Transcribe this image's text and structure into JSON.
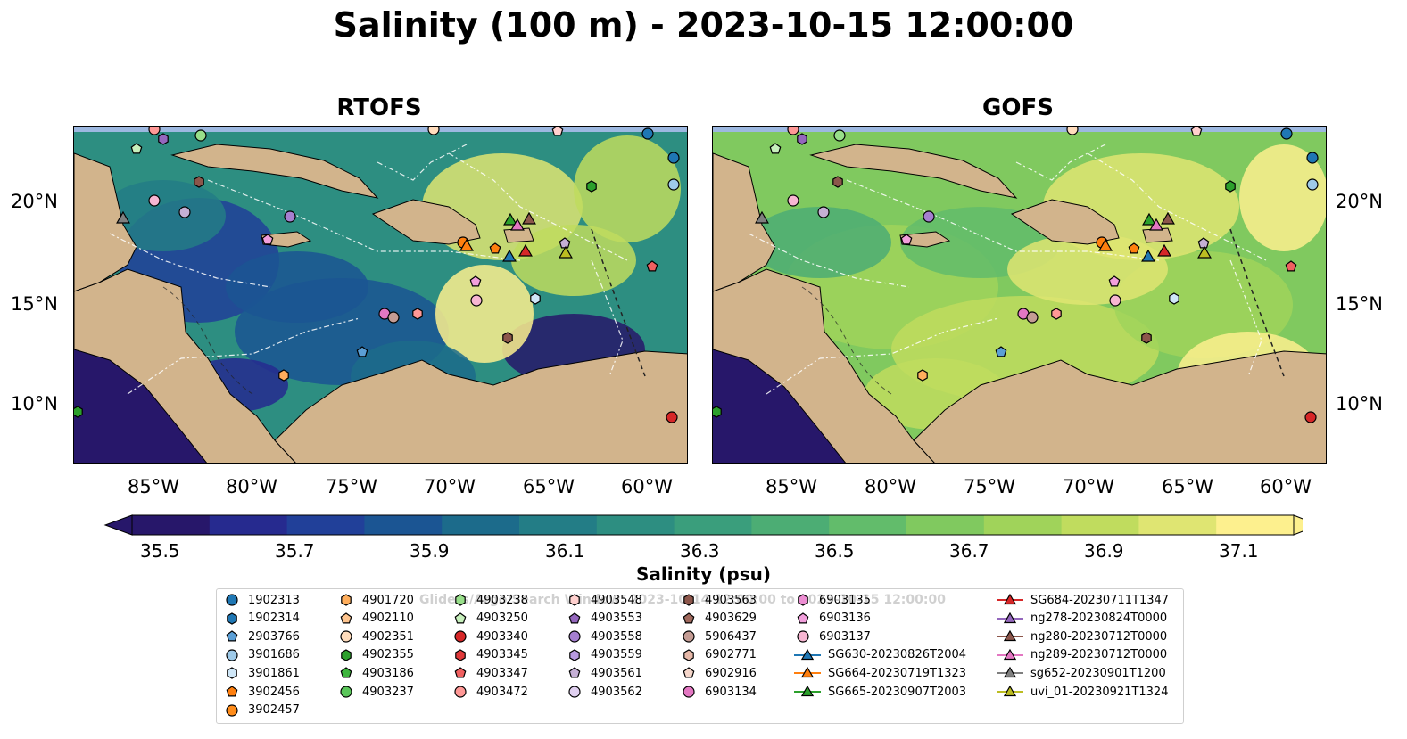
{
  "title": "Salinity (100 m) - 2023-10-15 12:00:00",
  "panels": [
    {
      "title": "RTOFS",
      "theme": "rtofs"
    },
    {
      "title": "GOFS",
      "theme": "gofs"
    }
  ],
  "lat_ticks": [
    "20°N",
    "15°N",
    "10°N"
  ],
  "lon_ticks": [
    "85°W",
    "80°W",
    "75°W",
    "70°W",
    "65°W",
    "60°W"
  ],
  "colorbar": {
    "ticks": [
      "35.5",
      "35.7",
      "35.9",
      "36.1",
      "36.3",
      "36.5",
      "36.7",
      "36.9",
      "37.1"
    ],
    "label": "Salinity (psu)",
    "colors": [
      "#27176a",
      "#262a8f",
      "#214099",
      "#1b5593",
      "#1c6b8b",
      "#237d86",
      "#2d8e81",
      "#3a9e7c",
      "#4cad74",
      "#62bc6b",
      "#80c95f",
      "#a0d35a",
      "#c0dc5e",
      "#dfe572",
      "#fdf08e"
    ]
  },
  "legend_watermark": "Gliders/Argo/Search Window: 2023-10-14 12:00:00 to 2023-10-15 12:00:00",
  "legend": [
    {
      "label": "1902313",
      "marker": "circle",
      "color": "#1f77b4"
    },
    {
      "label": "1902314",
      "marker": "hexagon",
      "color": "#1f77b4"
    },
    {
      "label": "2903766",
      "marker": "pentagon",
      "color": "#5b9fd6"
    },
    {
      "label": "3901686",
      "marker": "circle",
      "color": "#9ecae9"
    },
    {
      "label": "3901861",
      "marker": "hexagon",
      "color": "#cfe7f8"
    },
    {
      "label": "3902456",
      "marker": "pentagon",
      "color": "#ff7f0e"
    },
    {
      "label": "3902457",
      "marker": "circle",
      "color": "#ff8c1a"
    },
    {
      "label": "4901720",
      "marker": "hexagon",
      "color": "#ffae5c"
    },
    {
      "label": "4902110",
      "marker": "pentagon",
      "color": "#ffc58f"
    },
    {
      "label": "4902351",
      "marker": "circle",
      "color": "#ffdcbc"
    },
    {
      "label": "4902355",
      "marker": "hexagon",
      "color": "#2ca02c"
    },
    {
      "label": "4903186",
      "marker": "pentagon",
      "color": "#3cb43c"
    },
    {
      "label": "4903237",
      "marker": "circle",
      "color": "#5ac65a"
    },
    {
      "label": "4903238",
      "marker": "hexagon",
      "color": "#98df8a"
    },
    {
      "label": "4903250",
      "marker": "pentagon",
      "color": "#c7f0bc"
    },
    {
      "label": "4903340",
      "marker": "circle",
      "color": "#d62728"
    },
    {
      "label": "4903345",
      "marker": "hexagon",
      "color": "#e0393a"
    },
    {
      "label": "4903347",
      "marker": "pentagon",
      "color": "#f06060"
    },
    {
      "label": "4903472",
      "marker": "circle",
      "color": "#ff9896"
    },
    {
      "label": "4903548",
      "marker": "hexagon",
      "color": "#ffd0ce"
    },
    {
      "label": "4903553",
      "marker": "pentagon",
      "color": "#9467bd"
    },
    {
      "label": "4903558",
      "marker": "circle",
      "color": "#a57fd0"
    },
    {
      "label": "4903559",
      "marker": "hexagon",
      "color": "#b89ae0"
    },
    {
      "label": "4903561",
      "marker": "pentagon",
      "color": "#c5b0d5"
    },
    {
      "label": "4903562",
      "marker": "circle",
      "color": "#e0d0f0"
    },
    {
      "label": "4903563",
      "marker": "hexagon",
      "color": "#8c564b"
    },
    {
      "label": "4903629",
      "marker": "pentagon",
      "color": "#a0695d"
    },
    {
      "label": "5906437",
      "marker": "circle",
      "color": "#c49c94"
    },
    {
      "label": "6902771",
      "marker": "hexagon",
      "color": "#e6b8a8"
    },
    {
      "label": "6902916",
      "marker": "pentagon",
      "color": "#f5d6ca"
    },
    {
      "label": "6903134",
      "marker": "circle",
      "color": "#e377c2"
    },
    {
      "label": "6903135",
      "marker": "hexagon",
      "color": "#ec8dd2"
    },
    {
      "label": "6903136",
      "marker": "pentagon",
      "color": "#f29fdc"
    },
    {
      "label": "6903137",
      "marker": "circle",
      "color": "#f7b6d2"
    },
    {
      "label": "SG630-20230826T2004",
      "marker": "triangle-line",
      "color": "#1f77b4"
    },
    {
      "label": "SG664-20230719T1323",
      "marker": "triangle-line",
      "color": "#ff7f0e"
    },
    {
      "label": "SG665-20230907T2003",
      "marker": "triangle-line",
      "color": "#2ca02c"
    },
    {
      "label": "SG684-20230711T1347",
      "marker": "triangle-line",
      "color": "#d62728"
    },
    {
      "label": "ng278-20230824T0000",
      "marker": "triangle-line",
      "color": "#9467bd"
    },
    {
      "label": "ng280-20230712T0000",
      "marker": "triangle-line",
      "color": "#8c564b"
    },
    {
      "label": "ng289-20230712T0000",
      "marker": "triangle-line",
      "color": "#e377c2"
    },
    {
      "label": "sg652-20230901T1200",
      "marker": "triangle-line",
      "color": "#7f7f7f"
    },
    {
      "label": "uvi_01-20230921T1324",
      "marker": "triangle-line",
      "color": "#bcbd22"
    }
  ]
}
